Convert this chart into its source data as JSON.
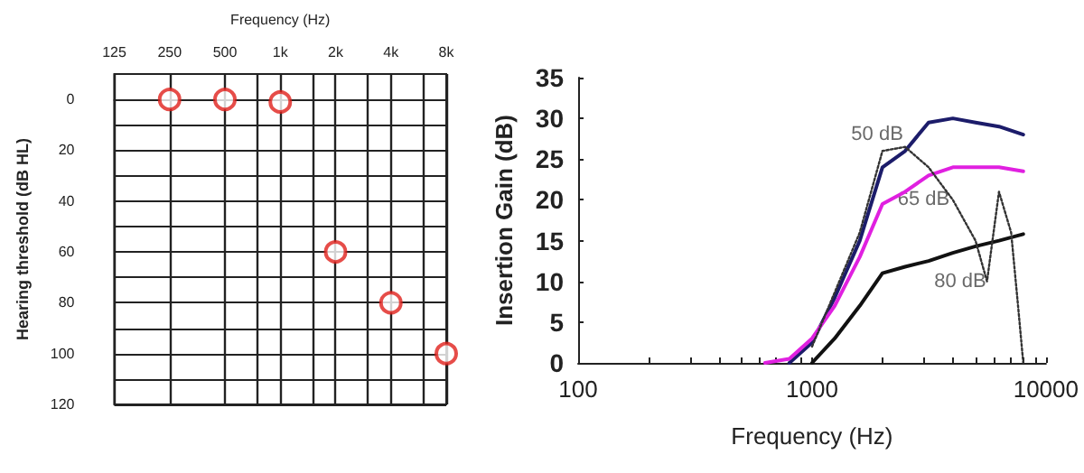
{
  "chart_data": [
    {
      "type": "scatter",
      "xlabel": "Frequency (Hz)",
      "ylabel": "Hearing threshold (dB HL)",
      "log": "x",
      "grid": true,
      "marker": "circle",
      "x": [
        250,
        500,
        1000,
        2000,
        4000,
        8000
      ],
      "xlim": [
        125,
        8000
      ],
      "xticks": [
        {
          "value": 125,
          "label": "125"
        },
        {
          "value": 250,
          "label": "250"
        },
        {
          "value": 500,
          "label": "500"
        },
        {
          "value": 750,
          "label": null
        },
        {
          "value": 1000,
          "label": "1k"
        },
        {
          "value": 1500,
          "label": null
        },
        {
          "value": 2000,
          "label": "2k"
        },
        {
          "value": 3000,
          "label": null
        },
        {
          "value": 4000,
          "label": "4k"
        },
        {
          "value": 6000,
          "label": null
        },
        {
          "value": 8000,
          "label": "8k"
        }
      ],
      "ylim": [
        120,
        -10
      ],
      "yticks": [
        0,
        {
          "value": 10,
          "label": null
        },
        20,
        {
          "value": 30,
          "label": null
        },
        40,
        {
          "value": 50,
          "label": null
        },
        60,
        {
          "value": 70,
          "label": null
        },
        80,
        {
          "value": 90,
          "label": null
        },
        100,
        {
          "value": 110,
          "label": null
        },
        120
      ],
      "series": [
        {
          "color": "#e0201c",
          "values": [
            0,
            0,
            1,
            60,
            80,
            100
          ]
        }
      ]
    },
    {
      "type": "line",
      "xlabel": "Frequency (Hz)",
      "ylabel": "Insertion Gain (dB)",
      "log": "x",
      "grid": false,
      "marker": "none",
      "xlim": [
        100,
        10000
      ],
      "xticks": [
        100,
        {
          "value": 200,
          "label": null
        },
        {
          "value": 300,
          "label": null
        },
        {
          "value": 400,
          "label": null
        },
        {
          "value": 500,
          "label": null
        },
        {
          "value": 600,
          "label": null
        },
        {
          "value": 700,
          "label": null
        },
        {
          "value": 800,
          "label": null
        },
        {
          "value": 900,
          "label": null
        },
        1000,
        {
          "value": 2000,
          "label": null
        },
        {
          "value": 3000,
          "label": null
        },
        {
          "value": 4000,
          "label": null
        },
        {
          "value": 5000,
          "label": null
        },
        {
          "value": 6000,
          "label": null
        },
        {
          "value": 7000,
          "label": null
        },
        {
          "value": 8000,
          "label": null
        },
        {
          "value": 9000,
          "label": null
        },
        10000
      ],
      "ylim": [
        0,
        35
      ],
      "yticks": [
        0,
        5,
        10,
        15,
        20,
        25,
        30,
        35
      ],
      "annotations": [
        {
          "text": "50 dB",
          "x": 1900,
          "y": 28
        },
        {
          "text": "65 dB",
          "x": 3000,
          "y": 20
        },
        {
          "text": "80 dB",
          "x": 4300,
          "y": 10
        }
      ],
      "series": [
        {
          "color": "#1c1c6a",
          "line_style": "solid",
          "x": [
            800,
            1000,
            1250,
            1600,
            2000,
            2500,
            3150,
            4000,
            5000,
            6300,
            8000
          ],
          "values": [
            0,
            2.5,
            8,
            15,
            24,
            26,
            29.5,
            30,
            29.5,
            29,
            28
          ]
        },
        {
          "color": "#e020e0",
          "line_style": "solid",
          "x": [
            630,
            800,
            1000,
            1250,
            1600,
            2000,
            2500,
            3150,
            4000,
            5000,
            6300,
            8000
          ],
          "values": [
            0,
            0.5,
            3,
            7,
            13,
            19.5,
            21,
            23,
            24,
            24,
            24,
            23.5
          ]
        },
        {
          "color": "#111111",
          "line_style": "solid",
          "x": [
            1000,
            1250,
            1600,
            2000,
            2500,
            3150,
            4000,
            5000,
            6300,
            8000
          ],
          "values": [
            0,
            3,
            7,
            11,
            11.8,
            12.5,
            13.5,
            14.3,
            15,
            15.8
          ]
        },
        {
          "color": "#333333",
          "line_style": "dotted",
          "x": [
            1000,
            1600,
            2000,
            2500,
            3150,
            4000,
            5000,
            5600,
            6300,
            7100,
            7600,
            8000
          ],
          "values": [
            2,
            16,
            26,
            26.5,
            24,
            20,
            15,
            10,
            21,
            16,
            7,
            0
          ]
        }
      ]
    }
  ]
}
